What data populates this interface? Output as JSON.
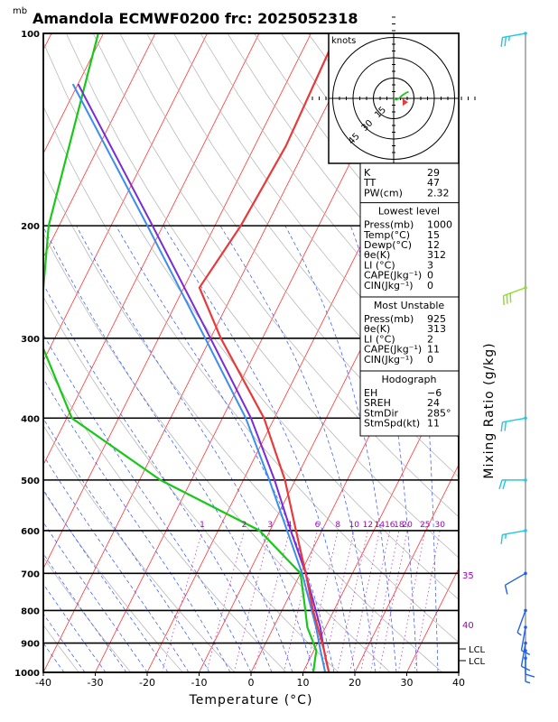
{
  "title": "Amandola ECMWF0200  frc: 2025052318",
  "unit_mb": "mb",
  "xlabel": "Temperature (°C)",
  "right_label": "Mixing Ratio  (g/kg)",
  "hodograph": {
    "units_label": "knots",
    "ring_labels": [
      "15",
      "30",
      "45"
    ],
    "storm_arrow": {
      "dir_deg": 285,
      "speed_kt": 11
    }
  },
  "chart_data": {
    "type": "skew-t",
    "title": "Amandola ECMWF0200  frc: 2025052318",
    "xlabel": "Temperature (°C)",
    "ylabel_unit": "mb",
    "pressure_ticks": [
      100,
      200,
      300,
      400,
      500,
      600,
      700,
      800,
      900,
      1000
    ],
    "temperature_ticks": [
      -40,
      -30,
      -20,
      -10,
      0,
      10,
      20,
      30,
      40
    ],
    "xlim": [
      -40,
      40
    ],
    "ylim": [
      1000,
      100
    ],
    "mixing_ratio_labels": [
      "1",
      "2",
      "3",
      "4",
      "6",
      "8",
      "10",
      "12",
      "14",
      "16",
      "18",
      "20",
      "25",
      "30"
    ],
    "dry_adiabat_labels": [
      "35",
      "40"
    ],
    "lcl_labels": [
      "LCL",
      "LCL"
    ],
    "temperature_profile": [
      {
        "p": 1000,
        "t": 15
      },
      {
        "p": 950,
        "t": 13
      },
      {
        "p": 925,
        "t": 12
      },
      {
        "p": 850,
        "t": 8.5
      },
      {
        "p": 800,
        "t": 6
      },
      {
        "p": 700,
        "t": 1
      },
      {
        "p": 600,
        "t": -5
      },
      {
        "p": 500,
        "t": -12
      },
      {
        "p": 400,
        "t": -22
      },
      {
        "p": 300,
        "t": -38
      },
      {
        "p": 250,
        "t": -47
      },
      {
        "p": 200,
        "t": -45
      },
      {
        "p": 150,
        "t": -44
      },
      {
        "p": 100,
        "t": -45
      }
    ],
    "dewpoint_profile": [
      {
        "p": 1000,
        "t": 12
      },
      {
        "p": 950,
        "t": 11
      },
      {
        "p": 925,
        "t": 10.5
      },
      {
        "p": 850,
        "t": 6.5
      },
      {
        "p": 800,
        "t": 4.5
      },
      {
        "p": 700,
        "t": 0
      },
      {
        "p": 600,
        "t": -12
      },
      {
        "p": 500,
        "t": -36
      },
      {
        "p": 400,
        "t": -59
      },
      {
        "p": 300,
        "t": -73
      },
      {
        "p": 200,
        "t": -82
      },
      {
        "p": 100,
        "t": -91
      }
    ],
    "parcel_profile": [
      {
        "p": 1000,
        "t": 15
      },
      {
        "p": 925,
        "t": 12
      },
      {
        "p": 850,
        "t": 9
      },
      {
        "p": 700,
        "t": 1
      },
      {
        "p": 600,
        "t": -6
      },
      {
        "p": 500,
        "t": -14
      },
      {
        "p": 400,
        "t": -24.5
      },
      {
        "p": 300,
        "t": -40
      },
      {
        "p": 200,
        "t": -62
      },
      {
        "p": 120,
        "t": -90
      }
    ],
    "virtual_temperature_profile": [
      {
        "p": 1000,
        "t": 14.3
      },
      {
        "p": 925,
        "t": 11.3
      },
      {
        "p": 850,
        "t": 8.2
      },
      {
        "p": 700,
        "t": 0.3
      },
      {
        "p": 600,
        "t": -6.7
      },
      {
        "p": 500,
        "t": -15
      },
      {
        "p": 400,
        "t": -25.5
      },
      {
        "p": 300,
        "t": -41
      },
      {
        "p": 200,
        "t": -63
      },
      {
        "p": 120,
        "t": -91
      }
    ]
  },
  "indices": {
    "top": [
      {
        "label": "K",
        "value": "29"
      },
      {
        "label": "TT",
        "value": "47"
      },
      {
        "label": "PW(cm)",
        "value": "2.32"
      }
    ],
    "lowest_title": "Lowest level",
    "lowest": [
      {
        "label": "Press(mb)",
        "value": "1000"
      },
      {
        "label": "Temp(°C)",
        "value": "15"
      },
      {
        "label": "Dewp(°C)",
        "value": "12"
      },
      {
        "label": "θe(K)",
        "value": "312"
      },
      {
        "label": "LI (°C)",
        "value": "3"
      },
      {
        "label": "CAPE(Jkg⁻¹)",
        "value": "0"
      },
      {
        "label": "CIN(Jkg⁻¹)",
        "value": "0"
      }
    ],
    "mu_title": "Most Unstable",
    "mu": [
      {
        "label": "Press(mb)",
        "value": "925"
      },
      {
        "label": "θe(K)",
        "value": "313"
      },
      {
        "label": "LI (°C)",
        "value": "2"
      },
      {
        "label": "CAPE(Jkg⁻¹)",
        "value": "11"
      },
      {
        "label": "CIN(Jkg⁻¹)",
        "value": "0"
      }
    ],
    "hodo_title": "Hodograph",
    "hodo": [
      {
        "label": "EH",
        "value": "−6"
      },
      {
        "label": "SREH",
        "value": "24"
      },
      {
        "label": "StmDir",
        "value": "285°"
      },
      {
        "label": "StmSpd(kt)",
        "value": "11"
      }
    ]
  },
  "colors": {
    "isotherm": "#ff3030",
    "dry_adiabat": "#ff6a6a",
    "moist_adiabat": "#3050ff",
    "mixing_ratio": "#c040c0",
    "temperature": "#e83a3a",
    "dewpoint": "#18c818",
    "parcel": "#7a2ad8",
    "virtual_temp": "#3a8ef0",
    "wind_cyan": "#20c8e0",
    "wind_lime": "#88e020",
    "wind_blue": "#2060f0",
    "barb_pole": "#404040"
  },
  "wind_barbs": [
    {
      "p": 100,
      "dir": 260,
      "spd": 25,
      "color": "#20c8e0"
    },
    {
      "p": 250,
      "dir": 250,
      "spd": 30,
      "color": "#88e020"
    },
    {
      "p": 400,
      "dir": 260,
      "spd": 20,
      "color": "#20c8e0"
    },
    {
      "p": 500,
      "dir": 270,
      "spd": 20,
      "color": "#20c8e0"
    },
    {
      "p": 600,
      "dir": 260,
      "spd": 15,
      "color": "#20c8e0"
    },
    {
      "p": 700,
      "dir": 240,
      "spd": 10,
      "color": "#2060f0"
    },
    {
      "p": 800,
      "dir": 200,
      "spd": 5,
      "color": "#2060f0"
    },
    {
      "p": 850,
      "dir": 190,
      "spd": 10,
      "color": "#2060f0"
    },
    {
      "p": 900,
      "dir": 190,
      "spd": 10,
      "color": "#2060f0"
    },
    {
      "p": 925,
      "dir": 180,
      "spd": 10,
      "color": "#2060f0"
    },
    {
      "p": 950,
      "dir": 180,
      "spd": 5,
      "color": "#2060f0"
    }
  ]
}
